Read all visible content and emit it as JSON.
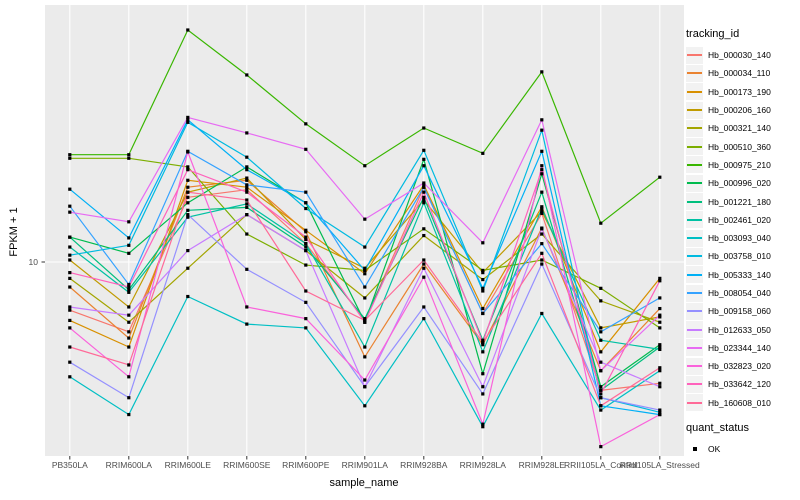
{
  "figure": {
    "background": "#FFFFFF",
    "panel_background": "#EBEBEB",
    "gridline_color": "#FFFFFF",
    "tick_color": "#333333",
    "tick_label_color": "#4D4D4D"
  },
  "chart_data": {
    "type": "line",
    "title": "",
    "xlabel": "sample_name",
    "ylabel": "FPKM + 1",
    "yscale": "log10",
    "y_tick_labels": [
      "10"
    ],
    "y_tick_values": [
      10
    ],
    "ylim": [
      1.45,
      127
    ],
    "grid": "major",
    "legend_position": "right",
    "point_shape": "filled-square",
    "point_color": "#000000",
    "categories": [
      "PB350LA",
      "RRIM600LA",
      "RRIM600LE",
      "RRIM600SE",
      "RRIM600PE",
      "RRIM901LA",
      "RRIM928BA",
      "RRIM928LA",
      "RRIM928LE",
      "RRII105LA_Control",
      "RRII105LA_Stressed"
    ],
    "series": [
      {
        "name": "Hb_000030_140",
        "color": "#F8766D",
        "values": [
          6.2,
          5.0,
          19,
          20.5,
          12,
          5.6,
          21,
          6.0,
          16.2,
          2.8,
          3.0
        ]
      },
      {
        "name": "Hb_000034_110",
        "color": "#EA8331",
        "values": [
          7.8,
          4.7,
          21,
          22.5,
          13.5,
          3.9,
          9.8,
          4.4,
          14,
          3.4,
          6.3
        ]
      },
      {
        "name": "Hb_000173_190",
        "color": "#D89000",
        "values": [
          5.6,
          4.3,
          22.5,
          21,
          13.7,
          8.9,
          21.5,
          6.3,
          17.3,
          4.1,
          8.5
        ]
      },
      {
        "name": "Hb_000206_160",
        "color": "#C09B00",
        "values": [
          10.2,
          6.4,
          20,
          23,
          12.5,
          9.4,
          18.5,
          9.0,
          16.5,
          5.2,
          5.8
        ]
      },
      {
        "name": "Hb_000321_140",
        "color": "#A3A500",
        "values": [
          8.5,
          5.5,
          9.4,
          16,
          11.2,
          7.0,
          13.0,
          8.4,
          13.2,
          6.8,
          5.5
        ]
      },
      {
        "name": "Hb_000510_360",
        "color": "#7CAE00",
        "values": [
          28,
          28,
          25.7,
          13.2,
          9.7,
          9.2,
          13.9,
          9.2,
          10.2,
          7.7,
          5.2
        ]
      },
      {
        "name": "Hb_000975_210",
        "color": "#39B600",
        "values": [
          29,
          29,
          100,
          64,
          39.4,
          26,
          37.8,
          29.4,
          66,
          14.7,
          23.2
        ]
      },
      {
        "name": "Hb_000996_020",
        "color": "#00BB4E",
        "values": [
          12.8,
          10.9,
          18,
          25.7,
          18,
          5.5,
          27.7,
          3.3,
          24,
          2.9,
          4.4
        ]
      },
      {
        "name": "Hb_001221_180",
        "color": "#00BF7D",
        "values": [
          12.8,
          7.6,
          16.7,
          17.2,
          11.6,
          5.7,
          19,
          4.6,
          20,
          2.8,
          4.3
        ]
      },
      {
        "name": "Hb_002461_020",
        "color": "#00C1A3",
        "values": [
          11.6,
          7.4,
          15.6,
          17.8,
          12,
          4.3,
          18,
          4.1,
          17,
          4.6,
          4.2
        ]
      },
      {
        "name": "Hb_003093_040",
        "color": "#00BFC4",
        "values": [
          3.2,
          2.2,
          7.1,
          5.4,
          5.2,
          2.4,
          5.7,
          1.95,
          6.0,
          2.3,
          3.4
        ]
      },
      {
        "name": "Hb_003758_010",
        "color": "#00BAE0",
        "values": [
          10.7,
          11.8,
          40,
          28.3,
          17,
          11.6,
          30.3,
          7.5,
          37,
          2.6,
          2.25
        ]
      },
      {
        "name": "Hb_005333_140",
        "color": "#00B0F6",
        "values": [
          20.6,
          12.7,
          41,
          25,
          18,
          9.2,
          26,
          7.7,
          30,
          2.4,
          2.2
        ]
      },
      {
        "name": "Hb_008054_040",
        "color": "#35A2FF",
        "values": [
          17.4,
          8.0,
          30,
          21.5,
          20,
          7.8,
          21,
          6.0,
          12,
          5.0,
          7.0
        ]
      },
      {
        "name": "Hb_009158_060",
        "color": "#9590FF",
        "values": [
          3.7,
          2.6,
          16,
          9.3,
          6.7,
          2.9,
          6.4,
          2.7,
          9.8,
          2.6,
          2.3
        ]
      },
      {
        "name": "Hb_012633_050",
        "color": "#C77CFF",
        "values": [
          6.4,
          5.9,
          11.2,
          16,
          11.2,
          2.9,
          9.4,
          2.9,
          13.9,
          3.7,
          2.9
        ]
      },
      {
        "name": "Hb_023344_140",
        "color": "#E76BF3",
        "values": [
          16.4,
          14.9,
          42,
          36,
          30.6,
          15.3,
          21.9,
          12.1,
          41,
          3.4,
          5.9
        ]
      },
      {
        "name": "Hb_032823_020",
        "color": "#FA62DB",
        "values": [
          5.2,
          3.2,
          29.8,
          6.4,
          5.7,
          3.1,
          8.6,
          2.0,
          26,
          1.6,
          2.2
        ]
      },
      {
        "name": "Hb_033642_120",
        "color": "#FF62BC",
        "values": [
          9.0,
          7.8,
          25,
          20,
          12.8,
          5.5,
          20,
          4.5,
          25,
          2.7,
          8.3
        ]
      },
      {
        "name": "Hb_160608_010",
        "color": "#FF6A98",
        "values": [
          4.3,
          3.6,
          20,
          18.5,
          7.5,
          5.6,
          10.2,
          4.5,
          10.9,
          2.4,
          3.5
        ]
      }
    ]
  },
  "legend": {
    "tracking_title": "tracking_id",
    "quant_title": "quant_status",
    "quant_items": [
      {
        "label": "OK",
        "shape": "square",
        "color": "#000000"
      }
    ]
  }
}
